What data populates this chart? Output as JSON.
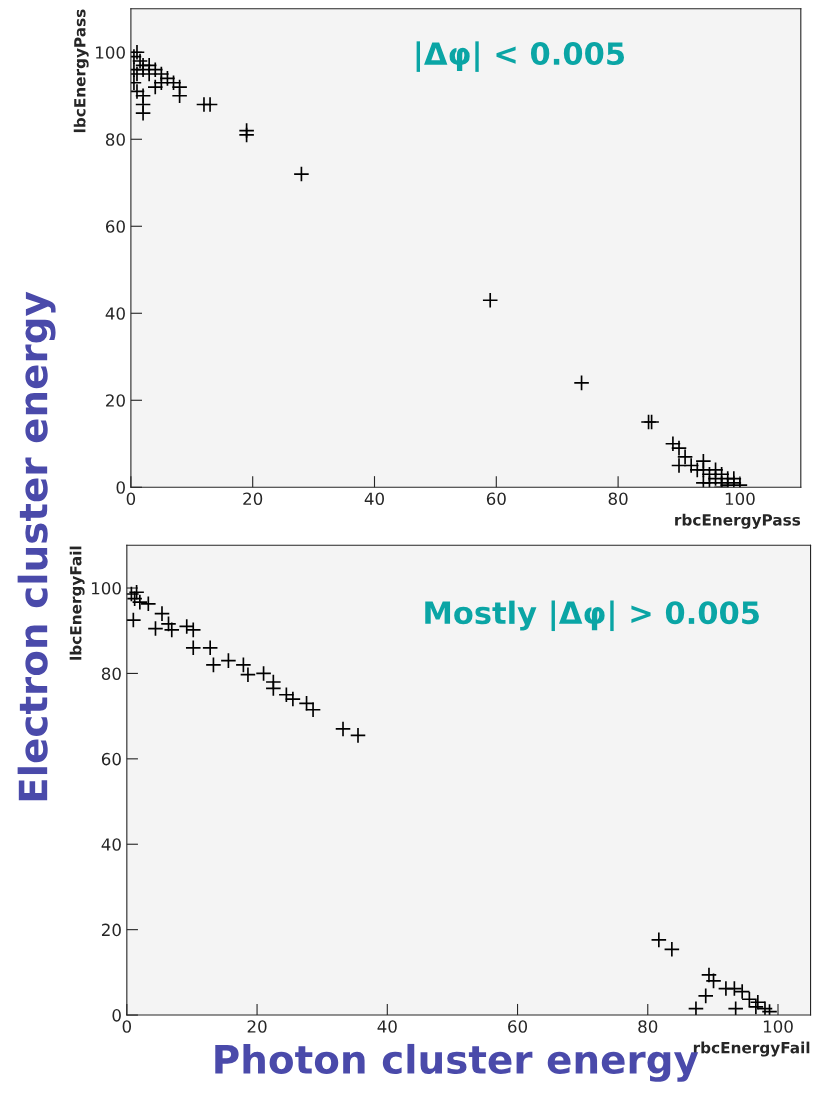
{
  "chart_data": [
    {
      "type": "scatter",
      "xlabel": "rbcEnergyPass",
      "ylabel": "lbcEnergyPass",
      "xlim": [
        0,
        110
      ],
      "ylim": [
        0,
        110
      ],
      "xticks": [
        0,
        20,
        40,
        60,
        80,
        100
      ],
      "yticks": [
        0,
        20,
        40,
        60,
        80,
        100
      ],
      "marker": "cross",
      "grid": false,
      "annotations": [
        "|Δφ| < 0.005",
        "Electron cluster energy"
      ],
      "series": [
        {
          "color": "#000000",
          "x": [
            0.5,
            1,
            1.5,
            2,
            0.5,
            1,
            2,
            3,
            3,
            0.5,
            1,
            2,
            4,
            5,
            6,
            5,
            7,
            8,
            4,
            2,
            2,
            8,
            12,
            13,
            19,
            19,
            28,
            59,
            74,
            85,
            85.5,
            89,
            90,
            91,
            90,
            92,
            93,
            94,
            94,
            95,
            96,
            97,
            98,
            99,
            100,
            95,
            97,
            94,
            98,
            96,
            97,
            99
          ],
          "values": [
            99,
            100,
            98,
            97,
            96,
            95,
            96,
            97,
            95,
            93,
            91,
            90,
            96,
            95,
            94,
            93,
            93,
            92,
            92,
            88,
            86,
            90,
            88,
            88,
            82,
            81,
            72,
            43,
            24,
            15,
            15,
            10,
            9,
            7,
            5,
            5,
            4,
            6,
            4,
            3,
            2,
            1,
            2,
            1,
            0.5,
            1,
            0,
            1,
            0.5,
            4,
            3,
            2
          ]
        }
      ]
    },
    {
      "type": "scatter",
      "xlabel": "rbcEnergyFail",
      "ylabel": "lbcEnergyFail",
      "xlim": [
        0,
        105
      ],
      "ylim": [
        0,
        110
      ],
      "xticks": [
        0,
        20,
        40,
        60,
        80,
        100
      ],
      "yticks": [
        0,
        20,
        40,
        60,
        80,
        100
      ],
      "marker": "cross",
      "grid": false,
      "annotations": [
        "Mostly |Δφ| > 0.005",
        "Photon cluster energy"
      ],
      "series": [
        {
          "color": "#000000",
          "x": [
            0.7,
            1.5,
            1.2,
            2,
            3.3,
            1,
            5.4,
            4.4,
            6.4,
            6.9,
            9.2,
            10.2,
            10.2,
            12.8,
            13.3,
            15.6,
            17.9,
            18.6,
            21,
            22.5,
            22.5,
            24.5,
            25.5,
            27.6,
            28.6,
            33.2,
            35.5,
            81.7,
            83.7,
            89.4,
            90.1,
            88.9,
            87.4,
            92,
            93.3,
            94.5,
            93.5,
            95.6,
            96.9,
            96.6,
            98.7,
            98
          ],
          "values": [
            98.6,
            99,
            97.5,
            96.7,
            96.3,
            92.5,
            94,
            90.5,
            91.6,
            90.2,
            91,
            90.2,
            86,
            86,
            82,
            83,
            82,
            79.7,
            80,
            78,
            76.5,
            75,
            74,
            73,
            71.5,
            67,
            65.5,
            17.6,
            15.4,
            9.4,
            8,
            4.5,
            1.5,
            6.2,
            6.2,
            5.5,
            1.5,
            3.7,
            3,
            1.9,
            0.8,
            1.5
          ]
        }
      ]
    }
  ]
}
